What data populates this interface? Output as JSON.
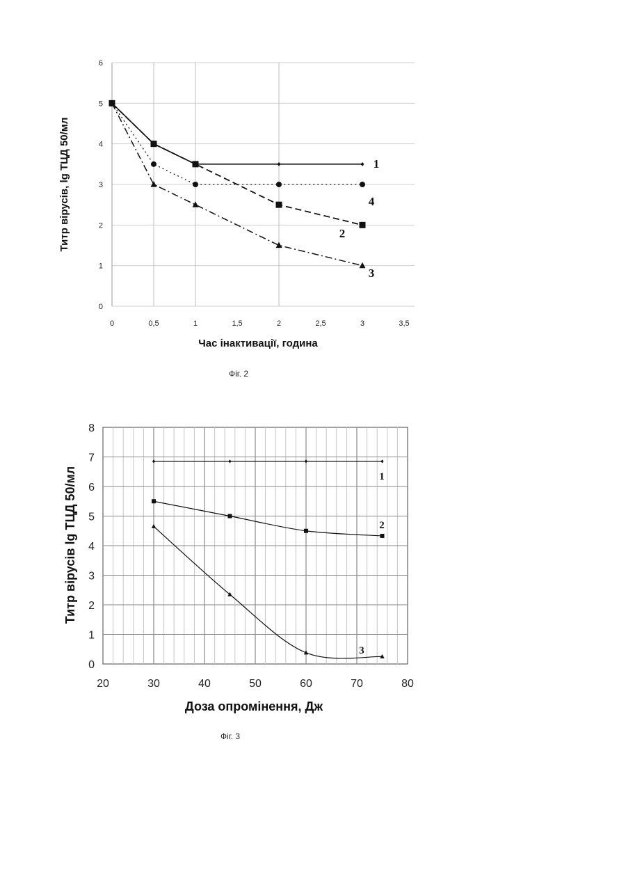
{
  "chart_data": [
    {
      "type": "line",
      "caption": "Фіг. 2",
      "xlabel": "Час інактивації, година",
      "ylabel": "Титр вірусів, lg ТЦД 50/мл",
      "xlim": [
        0,
        3.5
      ],
      "ylim": [
        0,
        6
      ],
      "grid": true,
      "x_ticks": [
        "0",
        "0,5",
        "1",
        "1,5",
        "2",
        "2,5",
        "3",
        "3,5"
      ],
      "y_ticks": [
        "0",
        "1",
        "2",
        "3",
        "4",
        "5",
        "6"
      ],
      "series": [
        {
          "name": "1",
          "marker": "diamond",
          "dash": "solid",
          "x": [
            0,
            0.5,
            1,
            2,
            3
          ],
          "y": [
            5,
            4,
            3.5,
            3.5,
            3.5
          ]
        },
        {
          "name": "2",
          "marker": "square",
          "dash": "dashed",
          "x": [
            0,
            0.5,
            1,
            2,
            3
          ],
          "y": [
            5,
            4,
            3.5,
            2.5,
            2
          ]
        },
        {
          "name": "3",
          "marker": "triangle",
          "dash": "dashdot",
          "x": [
            0,
            0.5,
            1,
            2,
            3
          ],
          "y": [
            5,
            3,
            2.5,
            1.5,
            1
          ]
        },
        {
          "name": "4",
          "marker": "circle",
          "dash": "dotted",
          "x": [
            0,
            0.5,
            1,
            2,
            3
          ],
          "y": [
            5,
            3.5,
            3,
            3,
            3
          ]
        }
      ]
    },
    {
      "type": "line",
      "caption": "Фіг. 3",
      "xlabel": "Доза опромінення, Дж",
      "ylabel": "Титр вірусів lg ТЦД 50/мл",
      "xlim": [
        20,
        80
      ],
      "ylim": [
        0,
        8
      ],
      "grid": true,
      "x_ticks": [
        "20",
        "30",
        "40",
        "50",
        "60",
        "70",
        "80"
      ],
      "y_ticks": [
        "0",
        "1",
        "2",
        "3",
        "4",
        "5",
        "6",
        "7",
        "8"
      ],
      "series": [
        {
          "name": "1",
          "marker": "diamond",
          "x": [
            30,
            45,
            60,
            75
          ],
          "y": [
            6.85,
            6.85,
            6.85,
            6.85
          ]
        },
        {
          "name": "2",
          "marker": "square",
          "x": [
            30,
            45,
            60,
            75
          ],
          "y": [
            5.5,
            5.0,
            4.5,
            4.33
          ]
        },
        {
          "name": "3",
          "marker": "triangle",
          "x": [
            30,
            45,
            60,
            75
          ],
          "y": [
            4.65,
            2.35,
            0.38,
            0.25
          ]
        }
      ]
    }
  ]
}
